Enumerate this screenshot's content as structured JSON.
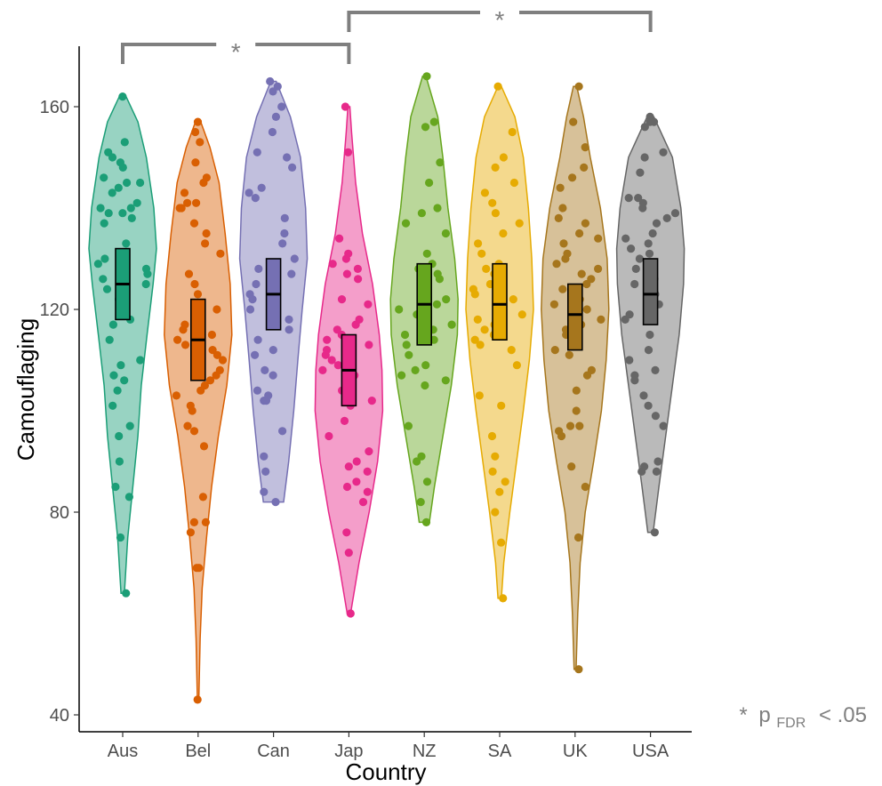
{
  "chart_data": {
    "type": "violin",
    "xlabel": "Country",
    "ylabel": "Camouflaging",
    "ylim": [
      38,
      172
    ],
    "yticks": [
      40,
      80,
      120,
      160
    ],
    "grid": false,
    "legend": "none",
    "groups": [
      {
        "label": "Aus",
        "color": "#1b9e77",
        "min": 64,
        "max": 162,
        "q1": 118,
        "median": 125,
        "q3": 132,
        "density": [
          [
            64,
            0.05
          ],
          [
            75,
            0.15
          ],
          [
            85,
            0.3
          ],
          [
            95,
            0.45
          ],
          [
            105,
            0.55
          ],
          [
            115,
            0.72
          ],
          [
            125,
            0.9
          ],
          [
            132,
            1.0
          ],
          [
            140,
            0.92
          ],
          [
            150,
            0.7
          ],
          [
            157,
            0.45
          ],
          [
            162,
            0.1
          ]
        ],
        "points": [
          162,
          153,
          151,
          150,
          149,
          148,
          146,
          145,
          145,
          144,
          143,
          141,
          140,
          140,
          139,
          139,
          138,
          137,
          133,
          131,
          130,
          129,
          128,
          127,
          126,
          126,
          125,
          124,
          122,
          120,
          118,
          117,
          114,
          110,
          109,
          107,
          106,
          104,
          101,
          97,
          95,
          90,
          85,
          83,
          75,
          64
        ]
      },
      {
        "label": "Bel",
        "color": "#d95f02",
        "min": 43,
        "max": 157,
        "q1": 106,
        "median": 114,
        "q3": 122,
        "density": [
          [
            43,
            0.02
          ],
          [
            55,
            0.06
          ],
          [
            65,
            0.12
          ],
          [
            75,
            0.25
          ],
          [
            85,
            0.4
          ],
          [
            95,
            0.6
          ],
          [
            105,
            0.85
          ],
          [
            115,
            1.0
          ],
          [
            125,
            0.95
          ],
          [
            135,
            0.8
          ],
          [
            145,
            0.62
          ],
          [
            152,
            0.35
          ],
          [
            157,
            0.08
          ]
        ],
        "points": [
          157,
          155,
          153,
          149,
          146,
          145,
          143,
          141,
          141,
          140,
          140,
          137,
          135,
          133,
          131,
          127,
          125,
          123,
          121,
          120,
          119,
          118,
          117,
          116,
          115,
          114,
          113,
          112,
          111,
          110,
          108,
          107,
          106,
          105,
          104,
          103,
          101,
          100,
          97,
          96,
          93,
          83,
          78,
          78,
          76,
          69,
          69,
          43
        ]
      },
      {
        "label": "Can",
        "color": "#7570b3",
        "min": 82,
        "max": 165,
        "q1": 116,
        "median": 123,
        "q3": 130,
        "density": [
          [
            82,
            0.3
          ],
          [
            90,
            0.45
          ],
          [
            100,
            0.6
          ],
          [
            110,
            0.72
          ],
          [
            120,
            0.85
          ],
          [
            130,
            1.0
          ],
          [
            140,
            0.95
          ],
          [
            150,
            0.8
          ],
          [
            158,
            0.5
          ],
          [
            165,
            0.08
          ]
        ],
        "points": [
          165,
          164,
          163,
          160,
          158,
          155,
          151,
          150,
          148,
          144,
          143,
          142,
          138,
          135,
          133,
          130,
          128,
          127,
          125,
          123,
          122,
          120,
          119,
          118,
          116,
          114,
          112,
          111,
          108,
          107,
          104,
          103,
          102,
          102,
          96,
          91,
          88,
          84,
          82
        ]
      },
      {
        "label": "Jap",
        "color": "#e7298a",
        "min": 60,
        "max": 160,
        "q1": 101,
        "median": 108,
        "q3": 115,
        "density": [
          [
            60,
            0.05
          ],
          [
            70,
            0.3
          ],
          [
            80,
            0.6
          ],
          [
            90,
            0.85
          ],
          [
            100,
            1.0
          ],
          [
            108,
            0.98
          ],
          [
            115,
            0.9
          ],
          [
            125,
            0.7
          ],
          [
            135,
            0.4
          ],
          [
            145,
            0.2
          ],
          [
            155,
            0.08
          ],
          [
            160,
            0.03
          ]
        ],
        "points": [
          160,
          151,
          134,
          131,
          130,
          129,
          128,
          127,
          126,
          122,
          121,
          118,
          117,
          116,
          115,
          114,
          113,
          112,
          111,
          110,
          109,
          108,
          107,
          106,
          104,
          103,
          102,
          101,
          98,
          95,
          92,
          90,
          89,
          88,
          86,
          85,
          84,
          82,
          76,
          72,
          60
        ]
      },
      {
        "label": "NZ",
        "color": "#66a61e",
        "min": 78,
        "max": 166,
        "q1": 113,
        "median": 121,
        "q3": 129,
        "density": [
          [
            78,
            0.15
          ],
          [
            85,
            0.3
          ],
          [
            95,
            0.55
          ],
          [
            105,
            0.8
          ],
          [
            115,
            0.98
          ],
          [
            122,
            1.0
          ],
          [
            130,
            0.9
          ],
          [
            140,
            0.7
          ],
          [
            150,
            0.55
          ],
          [
            158,
            0.4
          ],
          [
            166,
            0.05
          ]
        ],
        "points": [
          166,
          157,
          156,
          149,
          145,
          140,
          139,
          137,
          135,
          131,
          129,
          128,
          127,
          126,
          125,
          123,
          122,
          121,
          120,
          119,
          118,
          117,
          116,
          115,
          114,
          113,
          111,
          109,
          108,
          107,
          106,
          105,
          97,
          91,
          90,
          86,
          82,
          78
        ]
      },
      {
        "label": "SA",
        "color": "#e6ab02",
        "min": 63,
        "max": 164,
        "q1": 114,
        "median": 121,
        "q3": 129,
        "density": [
          [
            63,
            0.05
          ],
          [
            70,
            0.12
          ],
          [
            80,
            0.3
          ],
          [
            90,
            0.5
          ],
          [
            100,
            0.7
          ],
          [
            110,
            0.88
          ],
          [
            120,
            1.0
          ],
          [
            130,
            0.95
          ],
          [
            140,
            0.85
          ],
          [
            150,
            0.7
          ],
          [
            158,
            0.45
          ],
          [
            164,
            0.05
          ]
        ],
        "points": [
          164,
          155,
          150,
          148,
          145,
          143,
          141,
          139,
          137,
          135,
          133,
          131,
          129,
          128,
          127,
          126,
          125,
          124,
          123,
          122,
          121,
          120,
          119,
          118,
          117,
          116,
          115,
          114,
          113,
          112,
          109,
          103,
          101,
          95,
          91,
          88,
          86,
          84,
          80,
          74,
          63
        ]
      },
      {
        "label": "UK",
        "color": "#a6761d",
        "min": 49,
        "max": 164,
        "q1": 112,
        "median": 119,
        "q3": 125,
        "density": [
          [
            49,
            0.03
          ],
          [
            60,
            0.08
          ],
          [
            70,
            0.15
          ],
          [
            80,
            0.3
          ],
          [
            90,
            0.55
          ],
          [
            100,
            0.78
          ],
          [
            110,
            0.92
          ],
          [
            120,
            1.0
          ],
          [
            130,
            0.95
          ],
          [
            140,
            0.75
          ],
          [
            150,
            0.45
          ],
          [
            158,
            0.25
          ],
          [
            164,
            0.05
          ]
        ],
        "points": [
          164,
          157,
          152,
          148,
          146,
          144,
          140,
          138,
          137,
          135,
          134,
          133,
          131,
          130,
          129,
          128,
          127,
          126,
          125,
          124,
          122,
          121,
          120,
          118,
          117,
          116,
          115,
          114,
          113,
          112,
          111,
          108,
          107,
          104,
          100,
          97,
          97,
          96,
          95,
          89,
          85,
          75,
          49
        ]
      },
      {
        "label": "USA",
        "color": "#666666",
        "min": 76,
        "max": 158,
        "q1": 117,
        "median": 123,
        "q3": 130,
        "density": [
          [
            76,
            0.08
          ],
          [
            85,
            0.25
          ],
          [
            95,
            0.45
          ],
          [
            105,
            0.65
          ],
          [
            115,
            0.85
          ],
          [
            125,
            0.98
          ],
          [
            132,
            1.0
          ],
          [
            140,
            0.9
          ],
          [
            150,
            0.65
          ],
          [
            158,
            0.1
          ]
        ],
        "points": [
          158,
          157,
          157,
          156,
          151,
          150,
          147,
          142,
          142,
          141,
          140,
          139,
          138,
          137,
          135,
          134,
          133,
          132,
          131,
          130,
          128,
          127,
          126,
          125,
          123,
          121,
          120,
          119,
          118,
          115,
          112,
          110,
          108,
          107,
          106,
          103,
          101,
          99,
          97,
          90,
          89,
          88,
          88,
          76
        ]
      }
    ],
    "comparisons": [
      {
        "from": "Aus",
        "to": "Jap",
        "label": "*"
      },
      {
        "from": "Jap",
        "to": "USA",
        "label": "*"
      }
    ],
    "footnote": {
      "star": "*",
      "p": "p",
      "sub": "FDR",
      "rest": "< .05"
    }
  }
}
